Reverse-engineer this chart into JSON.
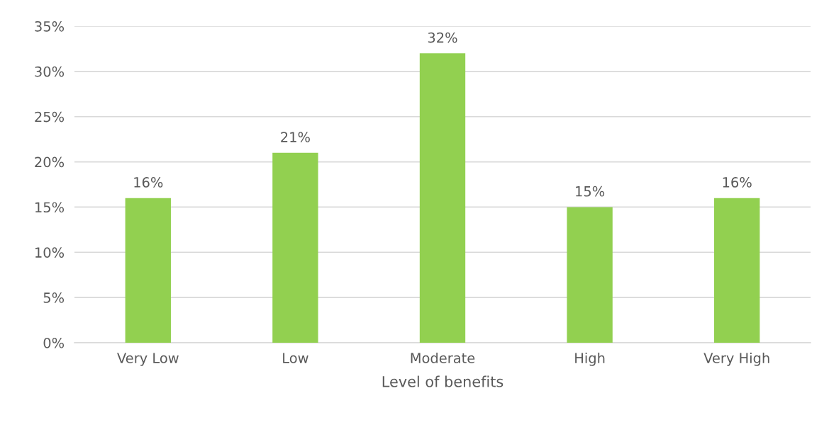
{
  "chart_data": {
    "type": "bar",
    "xlabel": "Level of benefits",
    "categories": [
      "Very Low",
      "Low",
      "Moderate",
      "High",
      "Very High"
    ],
    "values": [
      16,
      21,
      32,
      15,
      16
    ],
    "value_labels": [
      "16%",
      "21%",
      "32%",
      "15%",
      "16%"
    ],
    "color": "#92d050",
    "ylim": [
      0,
      35
    ],
    "yticks": [
      {
        "value": 0,
        "label": "0%"
      },
      {
        "value": 5,
        "label": "5%"
      },
      {
        "value": 10,
        "label": "10%"
      },
      {
        "value": 15,
        "label": "15%"
      },
      {
        "value": 20,
        "label": "20%"
      },
      {
        "value": 25,
        "label": "25%"
      },
      {
        "value": 30,
        "label": "30%"
      },
      {
        "value": 35,
        "label": "35%"
      }
    ],
    "grid": "y"
  }
}
